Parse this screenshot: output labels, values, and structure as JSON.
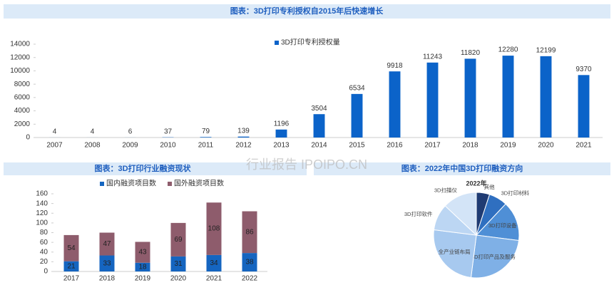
{
  "chart_data": [
    {
      "type": "bar",
      "title": "图表：3D打印专利授权自2015年后快速增长",
      "categories": [
        "2007",
        "2008",
        "2009",
        "2010",
        "2011",
        "2012",
        "2013",
        "2014",
        "2015",
        "2016",
        "2017",
        "2018",
        "2019",
        "2020",
        "2021"
      ],
      "series": [
        {
          "name": "3D打印专利授权量",
          "color": "#0b63c9",
          "values": [
            4,
            4,
            6,
            37,
            79,
            139,
            1196,
            3504,
            6534,
            9918,
            11243,
            11820,
            12280,
            12199,
            9370
          ]
        }
      ],
      "ylim": [
        0,
        14000
      ],
      "yticks": [
        0,
        2000,
        4000,
        6000,
        8000,
        10000,
        12000,
        14000
      ],
      "legend": "top",
      "watermark": "行业报告 IPOIPO.CN"
    },
    {
      "type": "stacked-bar",
      "title": "图表：3D打印行业融资现状",
      "categories": [
        "2017",
        "2018",
        "2019",
        "2020",
        "2021",
        "2022"
      ],
      "series": [
        {
          "name": "国内融资项目数",
          "color": "#1565c0",
          "values": [
            21,
            33,
            18,
            31,
            34,
            38
          ]
        },
        {
          "name": "国外融资项目数",
          "color": "#8e5c6c",
          "values": [
            54,
            47,
            43,
            69,
            108,
            86
          ]
        }
      ],
      "ylim": [
        0,
        160
      ],
      "yticks": [
        0,
        20,
        40,
        60,
        80,
        100,
        120,
        140,
        160
      ],
      "legend": "top"
    },
    {
      "type": "pie",
      "title": "图表：2022年中国3D打印融资方向",
      "subtitle": "2022年",
      "categories": [
        "其他",
        "3D打印材料",
        "3D打印设备",
        "3D打印产品及服务",
        "全产业链布局",
        "3D打印软件",
        "3D扫描仪"
      ],
      "values": [
        5,
        7,
        15,
        25,
        25,
        10,
        13
      ],
      "colors": [
        "#1f3b73",
        "#2f6fc0",
        "#4f8fd6",
        "#7fb0e6",
        "#a7c9ef",
        "#bcd6f3",
        "#d3e4f7"
      ]
    }
  ]
}
